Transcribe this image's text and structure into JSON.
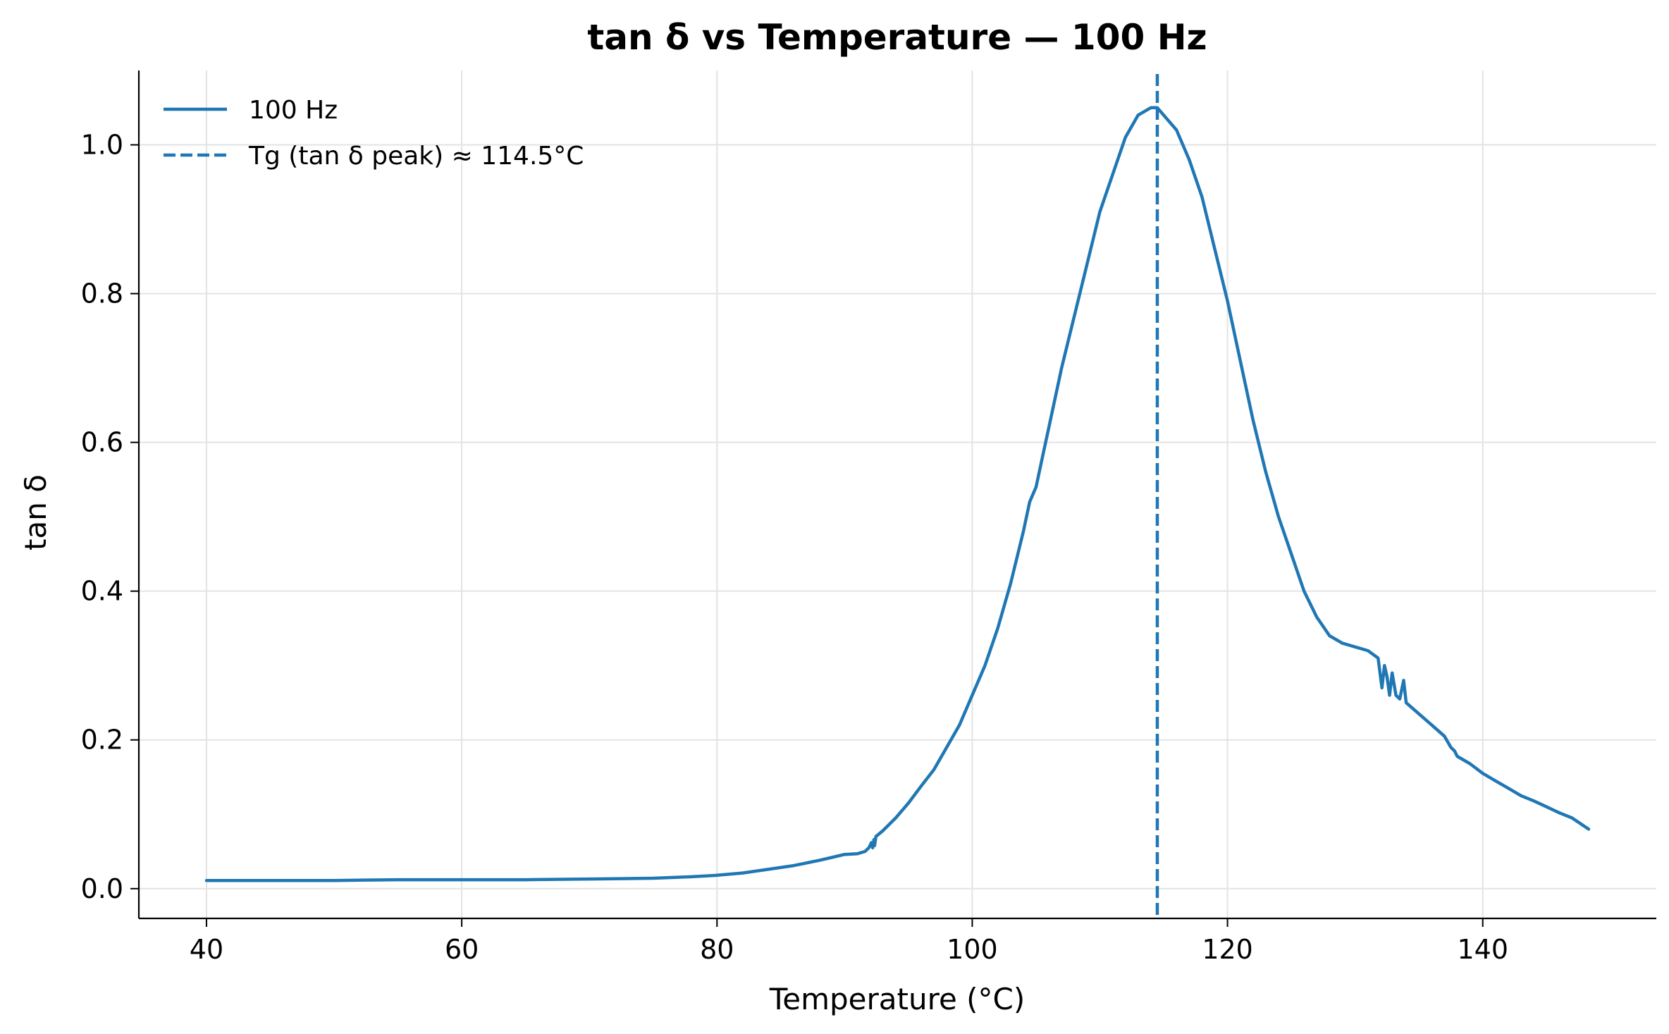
{
  "chart_data": {
    "type": "line",
    "title": "tan δ vs Temperature — 100 Hz",
    "xlabel": "Temperature (°C)",
    "ylabel": "tan δ",
    "xlim": [
      34.7,
      153.6
    ],
    "ylim": [
      -0.04,
      1.1
    ],
    "xticks": [
      40,
      60,
      80,
      100,
      120,
      140
    ],
    "xtick_labels": [
      "40",
      "60",
      "80",
      "100",
      "120",
      "140"
    ],
    "yticks": [
      0.0,
      0.2,
      0.4,
      0.6,
      0.8,
      1.0
    ],
    "ytick_labels": [
      "0.0",
      "0.2",
      "0.4",
      "0.6",
      "0.8",
      "1.0"
    ],
    "grid": true,
    "legend_position": "upper-left",
    "series": [
      {
        "name": "100 Hz",
        "style": "solid",
        "color": "#1f77b4",
        "x": [
          40,
          45,
          50,
          55,
          60,
          65,
          70,
          75,
          78,
          80,
          82,
          84,
          86,
          88,
          89,
          90,
          91,
          91.6,
          91.9,
          92.1,
          92.2,
          92.3,
          92.35,
          92.45,
          93,
          94,
          95,
          96,
          97,
          98,
          99,
          100,
          101,
          102,
          103,
          104,
          104.5,
          105,
          105.5,
          106,
          107,
          108,
          109,
          110,
          111,
          112,
          113,
          114,
          114.5,
          115,
          116,
          117,
          118,
          119,
          120,
          121,
          122,
          123,
          124,
          125,
          126,
          127,
          128,
          129,
          130,
          131,
          131.8,
          132.1,
          132.3,
          132.5,
          132.7,
          132.9,
          133.2,
          133.5,
          133.8,
          134,
          135,
          136,
          137,
          137.5,
          137.8,
          138,
          139,
          140,
          141,
          142,
          143,
          144,
          145,
          146,
          147,
          148.3
        ],
        "values": [
          0.011,
          0.011,
          0.011,
          0.012,
          0.012,
          0.012,
          0.013,
          0.014,
          0.016,
          0.018,
          0.021,
          0.026,
          0.031,
          0.038,
          0.042,
          0.046,
          0.047,
          0.05,
          0.055,
          0.062,
          0.055,
          0.066,
          0.058,
          0.07,
          0.078,
          0.095,
          0.115,
          0.138,
          0.16,
          0.19,
          0.22,
          0.26,
          0.3,
          0.35,
          0.41,
          0.48,
          0.52,
          0.54,
          0.58,
          0.62,
          0.7,
          0.77,
          0.84,
          0.91,
          0.96,
          1.01,
          1.04,
          1.05,
          1.05,
          1.04,
          1.02,
          0.98,
          0.93,
          0.86,
          0.79,
          0.71,
          0.63,
          0.56,
          0.5,
          0.45,
          0.4,
          0.365,
          0.34,
          0.33,
          0.325,
          0.32,
          0.31,
          0.27,
          0.3,
          0.285,
          0.26,
          0.29,
          0.26,
          0.255,
          0.28,
          0.25,
          0.235,
          0.22,
          0.205,
          0.19,
          0.185,
          0.178,
          0.168,
          0.155,
          0.145,
          0.135,
          0.125,
          0.118,
          0.11,
          0.102,
          0.095,
          0.08
        ]
      },
      {
        "name": "Tg (tan δ peak) ≈ 114.5°C",
        "style": "dashed",
        "color": "#1f77b4",
        "x_vertical": 114.5
      }
    ]
  }
}
